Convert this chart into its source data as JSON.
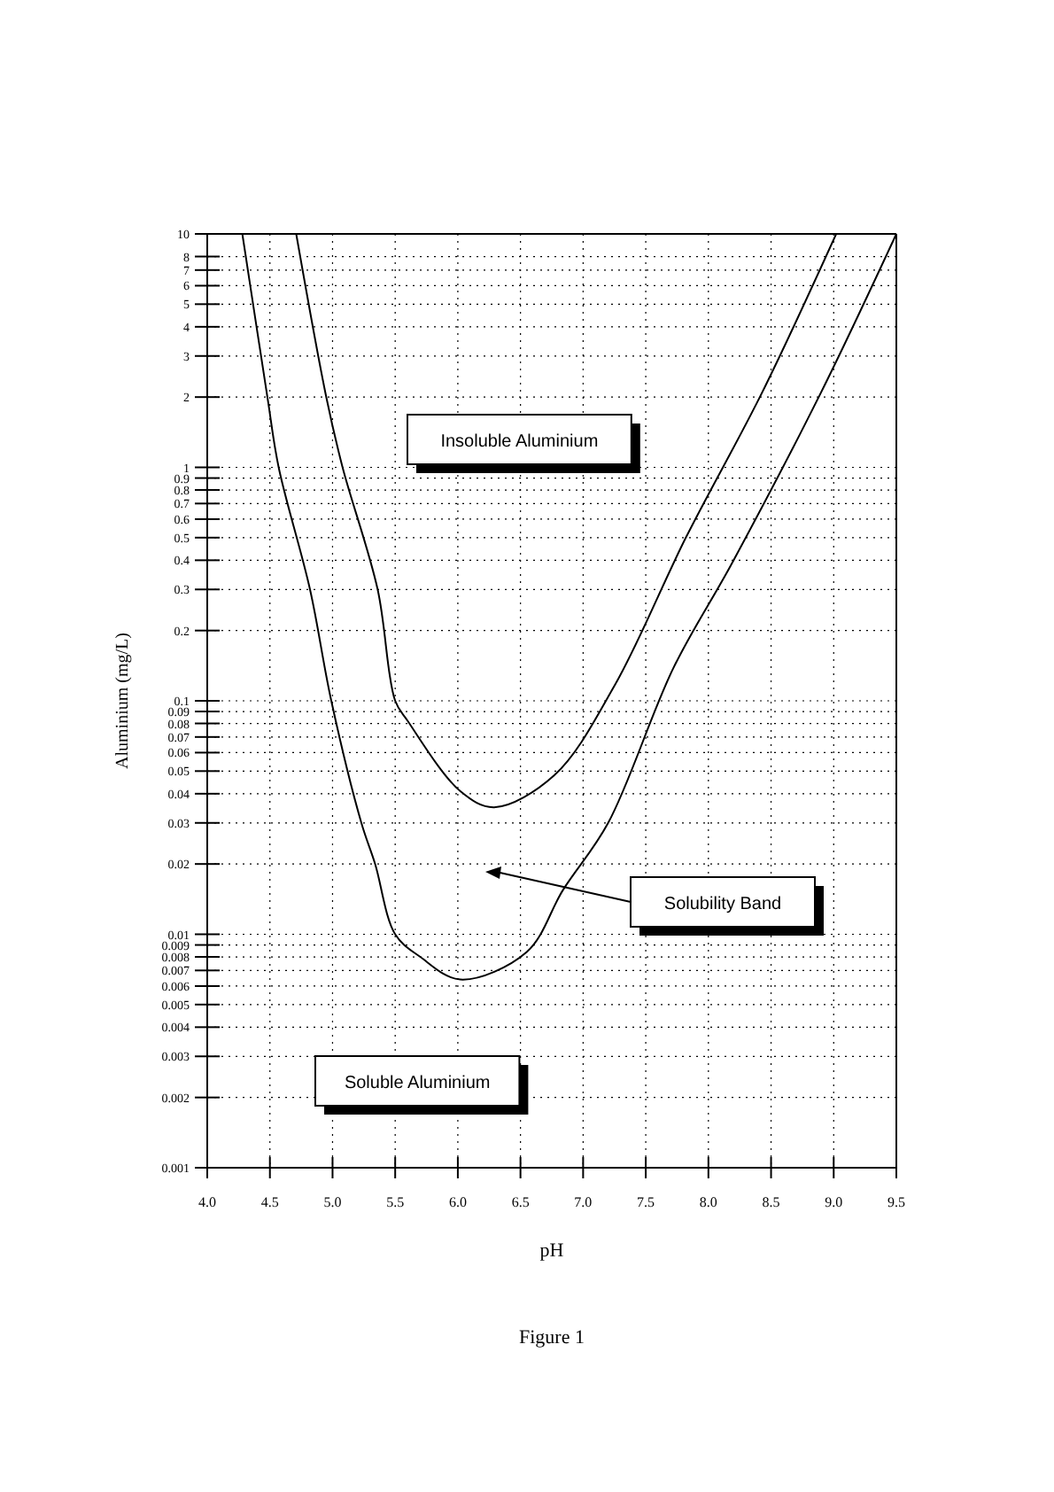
{
  "chart_data": {
    "type": "line",
    "xlabel": "pH",
    "ylabel": "Aluminium (mg/L)",
    "log": "y",
    "grid": true,
    "marker": "none",
    "line_style": "solid",
    "xlim": [
      4.0,
      9.5
    ],
    "ylim": [
      0.001,
      10
    ],
    "xticks": [
      {
        "value": 4.0,
        "label": "4.0"
      },
      4.5,
      {
        "value": 5.0,
        "label": "5.0"
      },
      5.5,
      {
        "value": 6.0,
        "label": "6.0"
      },
      6.5,
      {
        "value": 7.0,
        "label": "7.0"
      },
      7.5,
      {
        "value": 8.0,
        "label": "8.0"
      },
      8.5,
      {
        "value": 9.0,
        "label": "9.0"
      },
      9.5
    ],
    "yticks": [
      0.001,
      0.002,
      0.003,
      0.004,
      0.005,
      0.006,
      0.007,
      0.008,
      0.009,
      0.01,
      0.02,
      0.03,
      0.04,
      0.05,
      0.06,
      0.07,
      0.08,
      0.09,
      0.1,
      0.2,
      0.3,
      0.4,
      0.5,
      0.6,
      0.7,
      0.8,
      0.9,
      1,
      2,
      3,
      4,
      5,
      6,
      7,
      8,
      10
    ],
    "series": [
      {
        "color": "#000000",
        "x": [
          4.28,
          4.48,
          4.57,
          4.82,
          4.99,
          5.23,
          5.34,
          5.5,
          5.7,
          6.02,
          6.55,
          6.84,
          7.2,
          7.72,
          8.19,
          8.9,
          9.5
        ],
        "values": [
          10,
          2,
          1,
          0.3,
          0.1,
          0.03,
          0.02,
          0.01,
          0.008,
          0.0064,
          0.0084,
          0.0155,
          0.03,
          0.138,
          0.39,
          2.1,
          10
        ]
      },
      {
        "color": "#000000",
        "x": [
          4.71,
          4.95,
          5.08,
          5.36,
          5.5,
          5.6,
          6.02,
          6.29,
          6.77,
          7.25,
          7.82,
          8.43,
          9.02
        ],
        "values": [
          10,
          2,
          1,
          0.3,
          0.1,
          0.082,
          0.041,
          0.035,
          0.048,
          0.116,
          0.5,
          2.1,
          10
        ]
      }
    ],
    "annotations": [
      "Insoluble Aluminium",
      "Solubility Band",
      "Soluble Aluminium",
      "Figure 1"
    ]
  }
}
